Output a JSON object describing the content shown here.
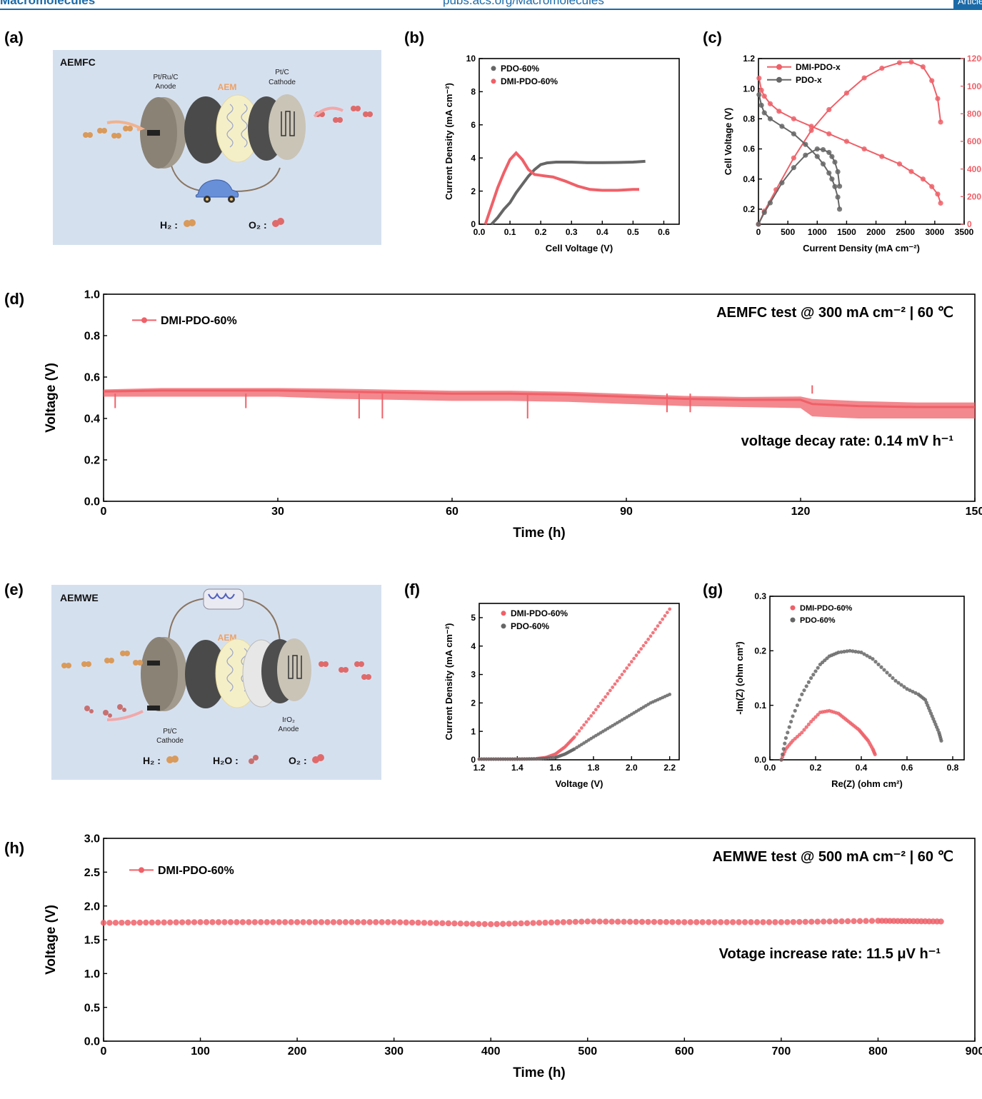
{
  "header": {
    "journal": "Macromolecules",
    "url": "pubs.acs.org/Macromolecules",
    "section": "Article"
  },
  "panel_labels": {
    "a": "(a)",
    "b": "(b)",
    "c": "(c)",
    "d": "(d)",
    "e": "(e)",
    "f": "(f)",
    "g": "(g)",
    "h": "(h)"
  },
  "schematic_a": {
    "title": "AEMFC",
    "membrane": "AEM",
    "anode": [
      "Pt/Ru/C",
      "Anode"
    ],
    "cathode": [
      "Pt/C",
      "Cathode"
    ],
    "legend_h2": "H₂ :",
    "legend_o2": "O₂ :",
    "colors": {
      "background": "#d5e0ef",
      "h2": "#d99a5a",
      "o2": "#e06a6a"
    }
  },
  "schematic_e": {
    "title": "AEMWE",
    "membrane": "AEM",
    "cathode": [
      "Pt/C",
      "Cathode"
    ],
    "anode": [
      "IrO₂",
      "Anode"
    ],
    "legend_h2": "H₂ :",
    "legend_h2o": "H₂O :",
    "legend_o2": "O₂ :",
    "colors": {
      "background": "#d5e0ef"
    }
  },
  "colors": {
    "red": "#ef6068",
    "gray": "#666666",
    "axis": "#000000"
  },
  "chart_data": [
    {
      "id": "b",
      "type": "line",
      "xlabel": "Cell Voltage (V)",
      "ylabel": "Current Density (mA cm⁻²)",
      "xlim": [
        0.0,
        0.65
      ],
      "ylim": [
        0,
        10
      ],
      "xticks": [
        "0.0",
        "0.1",
        "0.2",
        "0.3",
        "0.4",
        "0.5",
        "0.6"
      ],
      "yticks": [
        "0",
        "2",
        "4",
        "6",
        "8",
        "10"
      ],
      "legend": [
        "PDO-60%",
        "DMI-PDO-60%"
      ],
      "series": [
        {
          "name": "PDO-60%",
          "color": "#666666",
          "x": [
            0.04,
            0.06,
            0.08,
            0.1,
            0.12,
            0.14,
            0.16,
            0.18,
            0.2,
            0.22,
            0.25,
            0.3,
            0.35,
            0.4,
            0.45,
            0.5,
            0.54
          ],
          "y": [
            0.0,
            0.4,
            0.9,
            1.3,
            1.9,
            2.4,
            2.9,
            3.3,
            3.6,
            3.7,
            3.75,
            3.75,
            3.72,
            3.72,
            3.73,
            3.75,
            3.8
          ]
        },
        {
          "name": "DMI-PDO-60%",
          "color": "#ef6068",
          "x": [
            0.02,
            0.04,
            0.06,
            0.08,
            0.1,
            0.12,
            0.14,
            0.16,
            0.18,
            0.2,
            0.24,
            0.28,
            0.32,
            0.36,
            0.4,
            0.45,
            0.5,
            0.52
          ],
          "y": [
            0.0,
            1.1,
            2.2,
            3.1,
            3.9,
            4.3,
            3.9,
            3.3,
            3.0,
            2.95,
            2.85,
            2.6,
            2.3,
            2.1,
            2.05,
            2.05,
            2.1,
            2.1
          ]
        }
      ]
    },
    {
      "id": "c",
      "type": "line",
      "xlabel": "Current Density (mA cm⁻²)",
      "ylabel": "Cell Voltage (V)",
      "xlim": [
        0,
        3500
      ],
      "ylim": [
        0.1,
        1.2
      ],
      "y2lim": [
        0,
        1200
      ],
      "xticks": [
        "0",
        "500",
        "1000",
        "1500",
        "2000",
        "2500",
        "3000",
        "3500"
      ],
      "yticks": [
        "0.2",
        "0.4",
        "0.6",
        "0.8",
        "1.0",
        "1.2"
      ],
      "y2ticks": [
        "0",
        "200",
        "400",
        "600",
        "800",
        "1000",
        "1200"
      ],
      "legend": [
        "DMI-PDO-x",
        "PDO-x"
      ],
      "series": [
        {
          "name": "DMI-PDO-x",
          "axis": "left",
          "color": "#ef6068",
          "x": [
            10,
            50,
            100,
            200,
            350,
            600,
            900,
            1200,
            1500,
            1800,
            2100,
            2400,
            2600,
            2800,
            2950,
            3050,
            3100
          ],
          "y": [
            1.07,
            0.99,
            0.95,
            0.9,
            0.85,
            0.8,
            0.75,
            0.7,
            0.65,
            0.6,
            0.55,
            0.5,
            0.45,
            0.4,
            0.35,
            0.3,
            0.24
          ]
        },
        {
          "name": "DMI-PDO-x power",
          "axis": "right",
          "color": "#ef6068",
          "x": [
            0,
            100,
            300,
            600,
            900,
            1200,
            1500,
            1800,
            2100,
            2400,
            2600,
            2800,
            2950,
            3050,
            3100
          ],
          "y": [
            0,
            95,
            250,
            480,
            680,
            830,
            950,
            1060,
            1130,
            1170,
            1175,
            1140,
            1040,
            910,
            740
          ]
        },
        {
          "name": "PDO-x",
          "axis": "left",
          "color": "#666666",
          "x": [
            10,
            50,
            100,
            200,
            400,
            600,
            800,
            1000,
            1100,
            1200,
            1250,
            1300,
            1350,
            1380
          ],
          "y": [
            0.96,
            0.89,
            0.84,
            0.8,
            0.75,
            0.7,
            0.63,
            0.55,
            0.5,
            0.44,
            0.4,
            0.35,
            0.28,
            0.2
          ]
        },
        {
          "name": "PDO-x power",
          "axis": "right",
          "color": "#666666",
          "x": [
            0,
            100,
            200,
            400,
            600,
            800,
            1000,
            1100,
            1200,
            1250,
            1300,
            1350,
            1380
          ],
          "y": [
            0,
            85,
            155,
            300,
            410,
            500,
            545,
            540,
            520,
            490,
            450,
            380,
            275
          ]
        }
      ]
    },
    {
      "id": "d",
      "type": "line",
      "xlabel": "Time (h)",
      "ylabel": "Voltage (V)",
      "xlim": [
        0,
        150
      ],
      "ylim": [
        0.0,
        1.0
      ],
      "xticks": [
        "0",
        "30",
        "60",
        "90",
        "120",
        "150"
      ],
      "yticks": [
        "0.0",
        "0.2",
        "0.4",
        "0.6",
        "0.8",
        "1.0"
      ],
      "legend": [
        "DMI-PDO-60%"
      ],
      "annotations": [
        "AEMFC test @ 300 mA cm⁻² | 60 ℃",
        "voltage decay rate: 0.14 mV h⁻¹"
      ],
      "series": [
        {
          "name": "DMI-PDO-60%",
          "color": "#ef6068",
          "x": [
            0,
            10,
            20,
            30,
            40,
            50,
            60,
            70,
            80,
            90,
            100,
            110,
            120,
            122,
            130,
            140,
            150
          ],
          "y": [
            0.53,
            0.535,
            0.535,
            0.535,
            0.53,
            0.525,
            0.52,
            0.52,
            0.515,
            0.505,
            0.495,
            0.49,
            0.49,
            0.47,
            0.46,
            0.455,
            0.455
          ],
          "band": [
            0.025,
            0.03,
            0.03,
            0.03,
            0.035,
            0.035,
            0.035,
            0.035,
            0.035,
            0.035,
            0.035,
            0.035,
            0.04,
            0.06,
            0.06,
            0.055,
            0.055
          ]
        }
      ]
    },
    {
      "id": "f",
      "type": "scatter",
      "xlabel": "Voltage (V)",
      "ylabel": "Current Density (mA cm⁻²)",
      "xlim": [
        1.2,
        2.25
      ],
      "ylim": [
        0,
        5.5
      ],
      "xticks": [
        "1.2",
        "1.4",
        "1.6",
        "1.8",
        "2.0",
        "2.2"
      ],
      "yticks": [
        "0",
        "1",
        "2",
        "3",
        "4",
        "5"
      ],
      "legend": [
        "DMI-PDO-60%",
        "PDO-60%"
      ],
      "series": [
        {
          "name": "DMI-PDO-60%",
          "color": "#ef6068",
          "x": [
            1.2,
            1.3,
            1.4,
            1.5,
            1.55,
            1.6,
            1.65,
            1.7,
            1.8,
            1.9,
            2.0,
            2.1,
            2.2
          ],
          "y": [
            0.03,
            0.03,
            0.03,
            0.04,
            0.08,
            0.2,
            0.45,
            0.8,
            1.65,
            2.55,
            3.45,
            4.35,
            5.3
          ]
        },
        {
          "name": "PDO-60%",
          "color": "#666666",
          "x": [
            1.2,
            1.3,
            1.4,
            1.5,
            1.6,
            1.65,
            1.7,
            1.8,
            1.9,
            2.0,
            2.1,
            2.2
          ],
          "y": [
            0.02,
            0.02,
            0.02,
            0.03,
            0.08,
            0.2,
            0.38,
            0.8,
            1.2,
            1.6,
            2.0,
            2.3
          ]
        }
      ]
    },
    {
      "id": "g",
      "type": "scatter",
      "xlabel": "Re(Z) (ohm cm²)",
      "ylabel": "-Im(Z) (ohm cm²)",
      "xlim": [
        0.0,
        0.85
      ],
      "ylim": [
        0.0,
        0.3
      ],
      "xticks": [
        "0.0",
        "0.2",
        "0.4",
        "0.6",
        "0.8"
      ],
      "yticks": [
        "0.0",
        "0.1",
        "0.2",
        "0.3"
      ],
      "legend": [
        "DMI-PDO-60%",
        "PDO-60%"
      ],
      "series": [
        {
          "name": "DMI-PDO-60%",
          "color": "#ef6068",
          "x": [
            0.05,
            0.07,
            0.1,
            0.14,
            0.18,
            0.22,
            0.26,
            0.3,
            0.33,
            0.36,
            0.39,
            0.41,
            0.43,
            0.45,
            0.46
          ],
          "y": [
            0.0,
            0.02,
            0.035,
            0.05,
            0.07,
            0.087,
            0.09,
            0.085,
            0.075,
            0.065,
            0.055,
            0.045,
            0.035,
            0.02,
            0.01
          ]
        },
        {
          "name": "PDO-60%",
          "color": "#666666",
          "x": [
            0.05,
            0.07,
            0.1,
            0.14,
            0.18,
            0.22,
            0.26,
            0.3,
            0.35,
            0.4,
            0.45,
            0.5,
            0.55,
            0.6,
            0.65,
            0.68,
            0.7,
            0.72,
            0.74,
            0.75
          ],
          "y": [
            0.0,
            0.04,
            0.08,
            0.12,
            0.15,
            0.175,
            0.19,
            0.197,
            0.2,
            0.197,
            0.185,
            0.165,
            0.145,
            0.13,
            0.12,
            0.11,
            0.09,
            0.07,
            0.05,
            0.035
          ]
        }
      ]
    },
    {
      "id": "h",
      "type": "line",
      "xlabel": "Time (h)",
      "ylabel": "Voltage (V)",
      "xlim": [
        0,
        900
      ],
      "ylim": [
        0.0,
        3.0
      ],
      "xticks": [
        "0",
        "100",
        "200",
        "300",
        "400",
        "500",
        "600",
        "700",
        "800",
        "900"
      ],
      "yticks": [
        "0.0",
        "0.5",
        "1.0",
        "1.5",
        "2.0",
        "2.5",
        "3.0"
      ],
      "legend": [
        "DMI-PDO-60%"
      ],
      "annotations": [
        "AEMWE test @ 500 mA cm⁻² | 60 ℃",
        "Votage increase rate: 11.5 μV h⁻¹"
      ],
      "series": [
        {
          "name": "DMI-PDO-60%",
          "color": "#ef6068",
          "x": [
            0,
            100,
            200,
            300,
            400,
            500,
            600,
            700,
            800,
            865
          ],
          "y": [
            1.75,
            1.76,
            1.76,
            1.76,
            1.73,
            1.77,
            1.76,
            1.76,
            1.78,
            1.77
          ]
        }
      ]
    }
  ]
}
